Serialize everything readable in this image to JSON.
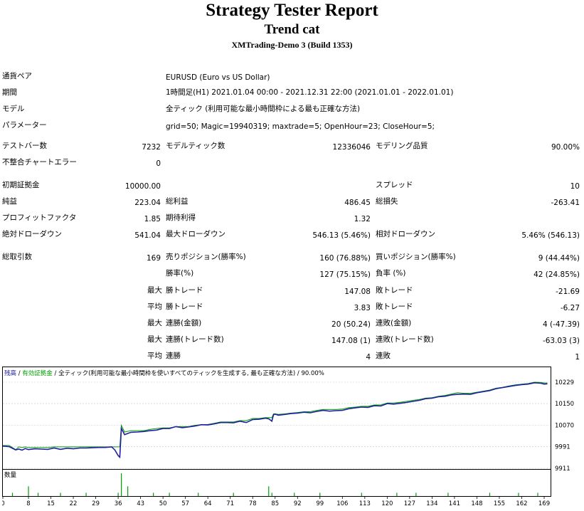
{
  "header": {
    "title": "Strategy Tester Report",
    "subtitle": "Trend cat",
    "server": "XMTrading-Demo 3 (Build 1353)"
  },
  "info": {
    "symbol_label": "通貨ペア",
    "symbol_value": "EURUSD (Euro vs US Dollar)",
    "period_label": "期間",
    "period_value": "1時間足(H1) 2021.01.04 00:00 - 2021.12.31 22:00 (2021.01.01 - 2022.01.01)",
    "model_label": "モデル",
    "model_value": "全ティック (利用可能な最小時間枠による最も正確な方法)",
    "params_label": "パラメーター",
    "params_value": "grid=50; Magic=19940319; maxtrade=5; OpenHour=23; CloseHour=5;"
  },
  "stats": {
    "bars_label": "テストバー数",
    "bars_value": "7232",
    "ticks_label": "モデルティック数",
    "ticks_value": "12336046",
    "quality_label": "モデリング品質",
    "quality_value": "90.00%",
    "mismatch_label": "不整合チャートエラー",
    "mismatch_value": "0",
    "deposit_label": "初期証拠金",
    "deposit_value": "10000.00",
    "spread_label": "スプレッド",
    "spread_value": "10",
    "net_label": "純益",
    "net_value": "223.04",
    "gross_profit_label": "総利益",
    "gross_profit_value": "486.45",
    "gross_loss_label": "総損失",
    "gross_loss_value": "-263.41",
    "pf_label": "プロフィットファクタ",
    "pf_value": "1.85",
    "payoff_label": "期待利得",
    "payoff_value": "1.32",
    "abs_dd_label": "絶対ドローダウン",
    "abs_dd_value": "541.04",
    "max_dd_label": "最大ドローダウン",
    "max_dd_value": "546.13 (5.46%)",
    "rel_dd_label": "相対ドローダウン",
    "rel_dd_value": "5.46% (546.13)",
    "trades_label": "総取引数",
    "trades_value": "169",
    "short_label": "売りポジション(勝率%)",
    "short_value": "160 (76.88%)",
    "long_label": "買いポジション(勝率%)",
    "long_value": "9 (44.44%)",
    "win_label": "勝率(%)",
    "win_value": "127 (75.15%)",
    "loss_label": "負率 (%)",
    "loss_value": "42 (24.85%)",
    "largest": "最大",
    "average": "平均",
    "largest_win_label": "勝トレード",
    "largest_win_value": "147.08",
    "largest_loss_label": "敗トレード",
    "largest_loss_value": "-21.69",
    "avg_win_label": "勝トレード",
    "avg_win_value": "3.83",
    "avg_loss_label": "敗トレード",
    "avg_loss_value": "-6.27",
    "max_cons_wins_label": "連勝(金額)",
    "max_cons_wins_value": "20 (50.24)",
    "max_cons_losses_label": "連敗(金額)",
    "max_cons_losses_value": "4 (-47.39)",
    "max_cons_profit_label": "連勝(トレード数)",
    "max_cons_profit_value": "147.08 (1)",
    "max_cons_loss_label": "連敗(トレード数)",
    "max_cons_loss_value": "-63.03 (3)",
    "avg_cons_wins_label": "連勝",
    "avg_cons_wins_value": "4",
    "avg_cons_losses_label": "連敗",
    "avg_cons_losses_value": "1"
  },
  "chart_data": {
    "type": "line",
    "legend": {
      "balance": "残高",
      "sep1": " / ",
      "equity": "有効証拠金",
      "sep2": " / ",
      "note": "全ティック(利用可能な最小時間枠を使いすべてのティックを生成する, 最も正確な方法) / 90.00%"
    },
    "y_ticks": [
      "10229",
      "10150",
      "10070",
      "9991",
      "9911"
    ],
    "ylim": [
      9911,
      10229
    ],
    "x_ticks": [
      "0",
      "8",
      "15",
      "22",
      "29",
      "36",
      "43",
      "50",
      "57",
      "64",
      "71",
      "78",
      "85",
      "92",
      "99",
      "106",
      "113",
      "120",
      "127",
      "134",
      "141",
      "148",
      "155",
      "162",
      "169"
    ],
    "xlim": [
      0,
      171
    ],
    "volume_label": "数量",
    "colors": {
      "balance": "#2020a0",
      "equity": "#00a000",
      "volume": "#00a000",
      "grid": "#c8c8c8"
    },
    "series": [
      {
        "name": "残高",
        "x": [
          0,
          2,
          4,
          5,
          6,
          7,
          8,
          10,
          12,
          14,
          16,
          18,
          20,
          22,
          24,
          26,
          28,
          30,
          32,
          34,
          35,
          36,
          36.5,
          37,
          38,
          40,
          42,
          44,
          46,
          48,
          50,
          52,
          54,
          56,
          58,
          60,
          62,
          64,
          66,
          68,
          70,
          72,
          74,
          76,
          78,
          80,
          82,
          83,
          84,
          84.5,
          85,
          86,
          88,
          90,
          92,
          94,
          96,
          98,
          100,
          102,
          104,
          106,
          108,
          110,
          112,
          114,
          116,
          118,
          120,
          122,
          124,
          126,
          128,
          130,
          132,
          134,
          136,
          138,
          140,
          142,
          144,
          146,
          148,
          150,
          152,
          154,
          156,
          158,
          160,
          162,
          164,
          166,
          168,
          169,
          170
        ],
        "values": [
          9993,
          9991,
          9979,
          9982,
          9978,
          9984,
          9980,
          9983,
          9982,
          9981,
          9986,
          9981,
          9985,
          9983,
          9986,
          9986,
          9987,
          9988,
          9988,
          9990,
          9978,
          9958,
          9952,
          10059,
          10035,
          10044,
          10045,
          10047,
          10050,
          10052,
          10058,
          10058,
          10065,
          10061,
          10064,
          10067,
          10072,
          10071,
          10075,
          10080,
          10080,
          10079,
          10085,
          10080,
          10091,
          10092,
          10096,
          10094,
          10085,
          10109,
          10111,
          10107,
          10110,
          10113,
          10115,
          10118,
          10116,
          10121,
          10125,
          10122,
          10124,
          10125,
          10131,
          10134,
          10137,
          10136,
          10142,
          10141,
          10150,
          10148,
          10151,
          10154,
          10158,
          10162,
          10168,
          10170,
          10175,
          10177,
          10182,
          10184,
          10185,
          10184,
          10190,
          10194,
          10198,
          10205,
          10209,
          10213,
          10217,
          10220,
          10222,
          10227,
          10225,
          10222,
          10223
        ]
      },
      {
        "name": "有効証拠金",
        "x": [
          0,
          2,
          4,
          5,
          6,
          7,
          8,
          10,
          12,
          14,
          16,
          18,
          20,
          22,
          24,
          26,
          28,
          30,
          32,
          34,
          35,
          36,
          36.5,
          37,
          38,
          40,
          42,
          44,
          46,
          48,
          50,
          52,
          54,
          56,
          58,
          60,
          62,
          64,
          66,
          68,
          70,
          72,
          74,
          76,
          78,
          80,
          82,
          83,
          84,
          84.5,
          85,
          86,
          88,
          90,
          92,
          94,
          96,
          98,
          100,
          102,
          104,
          106,
          108,
          110,
          112,
          114,
          116,
          118,
          120,
          122,
          124,
          126,
          128,
          130,
          132,
          134,
          136,
          138,
          140,
          142,
          144,
          146,
          148,
          150,
          152,
          154,
          156,
          158,
          160,
          162,
          164,
          166,
          168,
          169,
          170
        ],
        "values": [
          9995,
          9995,
          9980,
          9990,
          9988,
          9990,
          9988,
          9988,
          9988,
          9988,
          9990,
          9990,
          9990,
          9990,
          9990,
          9990,
          9990,
          9990,
          9990,
          9990,
          9990,
          9990,
          9990,
          10070,
          10045,
          10050,
          10050,
          10050,
          10055,
          10058,
          10060,
          10060,
          10065,
          10065,
          10065,
          10070,
          10072,
          10073,
          10077,
          10082,
          10082,
          10082,
          10087,
          10087,
          10095,
          10095,
          10098,
          10098,
          10098,
          10112,
          10112,
          10110,
          10112,
          10115,
          10117,
          10120,
          10120,
          10125,
          10128,
          10128,
          10128,
          10130,
          10135,
          10137,
          10140,
          10140,
          10145,
          10145,
          10152,
          10152,
          10155,
          10158,
          10162,
          10165,
          10170,
          10172,
          10177,
          10180,
          10185,
          10190,
          10188,
          10188,
          10192,
          10196,
          10200,
          10207,
          10210,
          10215,
          10219,
          10222,
          10224,
          10229,
          10228,
          10226,
          10226
        ]
      }
    ],
    "volume": {
      "x": [
        3,
        8,
        11,
        18,
        26,
        36,
        37,
        39,
        47,
        52,
        61,
        72,
        83,
        84,
        91,
        99,
        112,
        123,
        129,
        139,
        152,
        161,
        167
      ],
      "values": [
        1,
        3,
        1,
        1,
        1,
        1,
        7,
        3,
        1,
        1,
        1,
        1,
        3,
        1,
        1,
        1,
        1,
        1,
        1,
        1,
        1,
        1,
        1
      ]
    }
  }
}
